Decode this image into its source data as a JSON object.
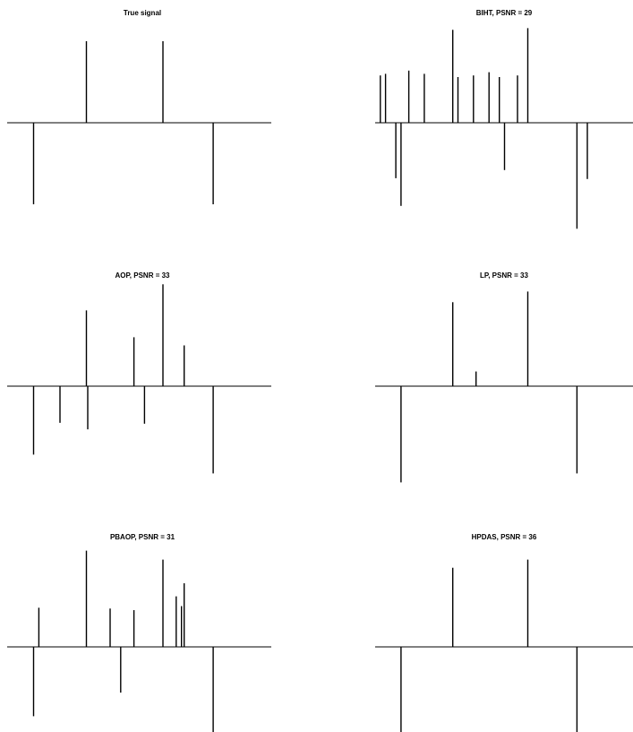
{
  "figure": {
    "background": "#ffffff",
    "line_color": "#000000"
  },
  "chart_data": [
    {
      "type": "stem",
      "title": "True signal",
      "xlabel": "",
      "ylabel": "",
      "grid": false,
      "axes_visible": false,
      "x": [
        0.1,
        0.3,
        0.59,
        0.78
      ],
      "y": [
        -1.0,
        1.0,
        1.0,
        -1.0
      ]
    },
    {
      "type": "stem",
      "title": "BIHT, PSNR = 29",
      "xlabel": "",
      "ylabel": "",
      "grid": false,
      "axes_visible": false,
      "x": [
        0.02,
        0.04,
        0.08,
        0.1,
        0.13,
        0.19,
        0.3,
        0.32,
        0.38,
        0.44,
        0.48,
        0.5,
        0.55,
        0.59,
        0.78,
        0.82
      ],
      "y": [
        0.58,
        0.6,
        -0.68,
        -1.02,
        0.64,
        0.6,
        1.14,
        0.56,
        0.58,
        0.62,
        0.56,
        -0.58,
        0.58,
        1.16,
        -1.3,
        -0.69
      ]
    },
    {
      "type": "stem",
      "title": "AOP, PSNR = 33",
      "xlabel": "",
      "ylabel": "",
      "grid": false,
      "axes_visible": false,
      "x": [
        0.1,
        0.2,
        0.3,
        0.305,
        0.48,
        0.52,
        0.59,
        0.67,
        0.78
      ],
      "y": [
        -0.84,
        -0.45,
        0.93,
        -0.53,
        0.6,
        -0.46,
        1.25,
        0.5,
        -1.07
      ]
    },
    {
      "type": "stem",
      "title": "LP, PSNR = 33",
      "xlabel": "",
      "ylabel": "",
      "grid": false,
      "axes_visible": false,
      "x": [
        0.1,
        0.3,
        0.39,
        0.59,
        0.78
      ],
      "y": [
        -1.18,
        1.03,
        0.18,
        1.16,
        -1.07
      ]
    },
    {
      "type": "stem",
      "title": "PBAOP, PSNR = 31",
      "xlabel": "",
      "ylabel": "",
      "grid": false,
      "axes_visible": false,
      "x": [
        0.1,
        0.12,
        0.3,
        0.39,
        0.43,
        0.48,
        0.59,
        0.64,
        0.66,
        0.67,
        0.78
      ],
      "y": [
        -0.85,
        0.48,
        1.18,
        0.47,
        -0.56,
        0.45,
        1.07,
        0.62,
        0.5,
        0.78,
        -1.07
      ]
    },
    {
      "type": "stem",
      "title": "HPDAS, PSNR = 36",
      "xlabel": "",
      "ylabel": "",
      "grid": false,
      "axes_visible": false,
      "x": [
        0.1,
        0.3,
        0.59,
        0.78
      ],
      "y": [
        -1.07,
        0.97,
        1.07,
        -1.07
      ]
    }
  ]
}
